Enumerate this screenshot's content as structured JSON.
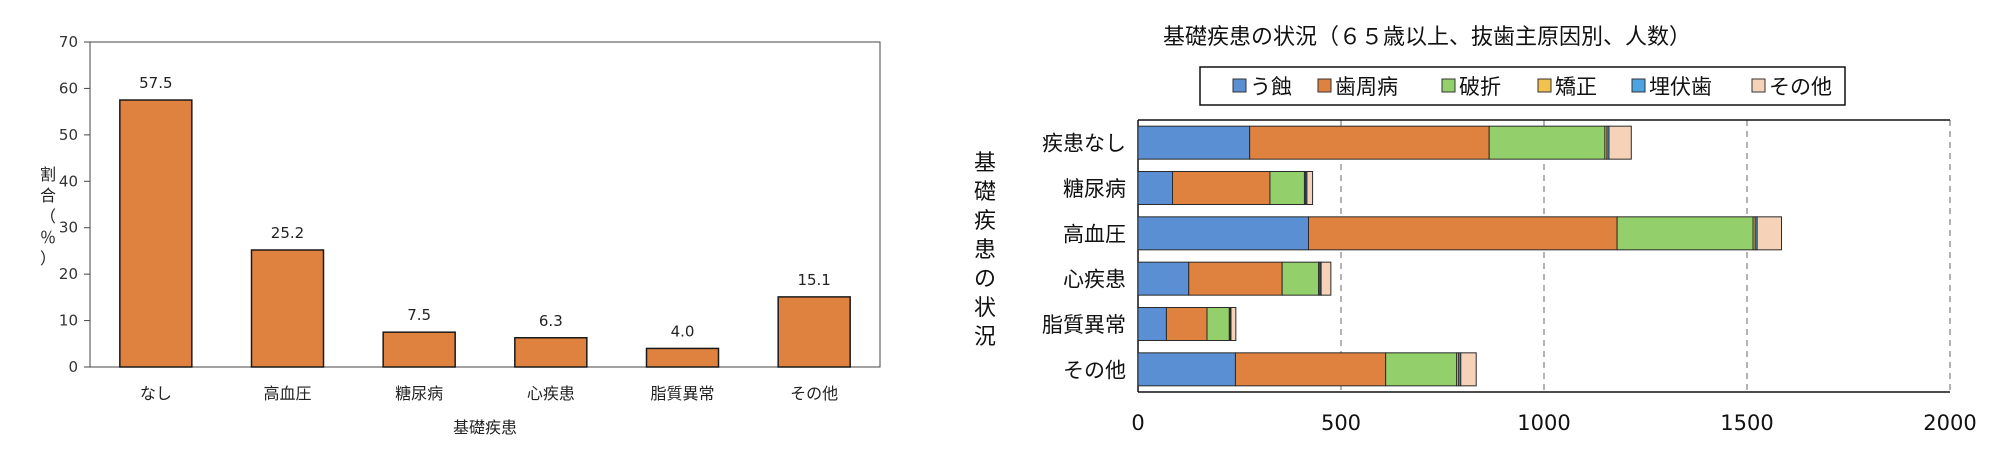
{
  "chart_data": [
    {
      "type": "bar",
      "title": "",
      "xlabel": "基礎疾患",
      "ylabel": "割合（％）",
      "ylabel_chars": [
        "割",
        "合",
        "（",
        "％",
        "）"
      ],
      "ylim": [
        0,
        70
      ],
      "yticks": [
        "0",
        "10",
        "20",
        "30",
        "40",
        "50",
        "60",
        "70"
      ],
      "categories": [
        "なし",
        "高血圧",
        "糖尿病",
        "心疾患",
        "脂質異常",
        "その他"
      ],
      "values": [
        57.5,
        25.2,
        7.5,
        6.3,
        4.0,
        15.1
      ],
      "value_labels": [
        "57.5",
        "25.2",
        "7.5",
        "6.3",
        "4.0",
        "15.1"
      ],
      "bar_color": "#E0823F",
      "grid": false
    },
    {
      "type": "bar",
      "orientation": "horizontal",
      "stacked": true,
      "title": "基礎疾患の状況（６５歳以上、抜歯主原因別、人数）",
      "ylabel": "基礎疾患の状況",
      "ylabel_chars": [
        "基",
        "礎",
        "疾",
        "患",
        "の",
        "状",
        "況"
      ],
      "xlabel": "",
      "xlim": [
        0,
        2000
      ],
      "xticks": [
        "0",
        "500",
        "1000",
        "1500",
        "2000"
      ],
      "grid": true,
      "legend_position": "top",
      "categories": [
        "疾患なし",
        "糖尿病",
        "高血圧",
        "心疾患",
        "脂質異常",
        "その他"
      ],
      "series": [
        {
          "name": "う蝕",
          "color": "#5B8FD4",
          "values": [
            275,
            85,
            420,
            125,
            70,
            240
          ]
        },
        {
          "name": "歯周病",
          "color": "#E0823F",
          "values": [
            590,
            240,
            760,
            230,
            100,
            370
          ]
        },
        {
          "name": "破折",
          "color": "#93D06B",
          "values": [
            285,
            85,
            335,
            90,
            55,
            175
          ]
        },
        {
          "name": "矯正",
          "color": "#F2C14E",
          "values": [
            5,
            3,
            5,
            3,
            2,
            5
          ]
        },
        {
          "name": "埋伏歯",
          "color": "#4BA3E3",
          "values": [
            5,
            3,
            5,
            3,
            2,
            5
          ]
        },
        {
          "name": "その他",
          "color": "#F6D3B8",
          "values": [
            55,
            14,
            60,
            24,
            12,
            38
          ]
        }
      ]
    }
  ]
}
